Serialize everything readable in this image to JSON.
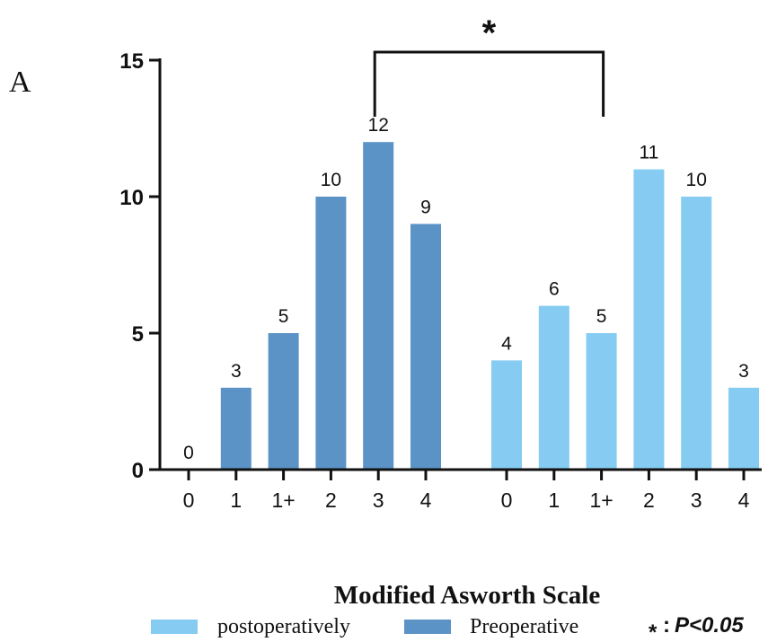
{
  "panel_label": "A",
  "colors": {
    "preoperative": "#5b93c6",
    "postoperatively": "#85cbf2",
    "axis": "#111111"
  },
  "chart_data": {
    "type": "bar",
    "xlabel": "Modified Asworth Scale",
    "ylabel": "",
    "ylim": [
      0,
      15
    ],
    "yticks": [
      0,
      5,
      10,
      15
    ],
    "grid": false,
    "legend_position": "bottom",
    "series": [
      {
        "name": "Preoperative",
        "color": "#5b93c6",
        "categories": [
          "0",
          "1",
          "1+",
          "2",
          "3",
          "4"
        ],
        "values": [
          0,
          3,
          5,
          10,
          12,
          9
        ]
      },
      {
        "name": "postoperatively",
        "color": "#85cbf2",
        "categories": [
          "0",
          "1",
          "1+",
          "2",
          "3",
          "4"
        ],
        "values": [
          4,
          6,
          5,
          11,
          10,
          3
        ]
      }
    ],
    "significance": {
      "marker": "*",
      "between": [
        "Preoperative",
        "postoperatively"
      ],
      "legend_text": ":",
      "p_text": "P<0.05"
    },
    "legend": [
      {
        "label": "postoperatively",
        "series": "postoperatively"
      },
      {
        "label": "Preoperative",
        "series": "Preoperative"
      }
    ]
  }
}
